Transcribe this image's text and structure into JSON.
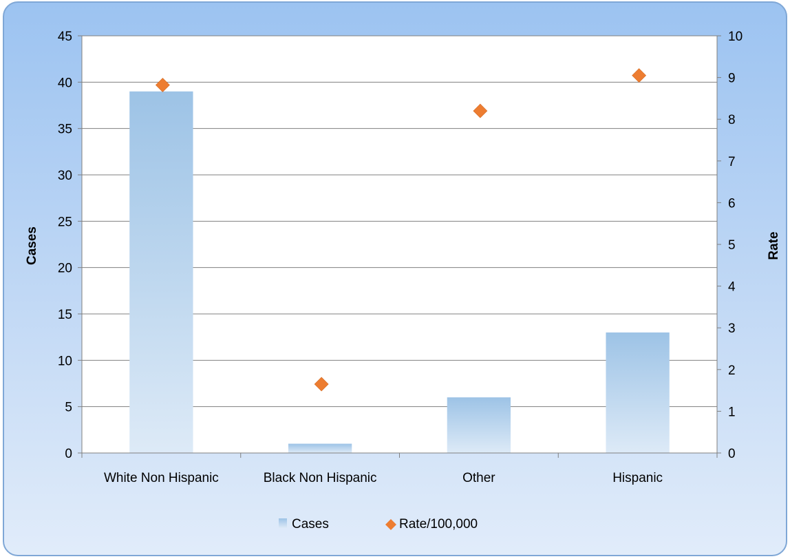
{
  "chart_data": {
    "type": "bar",
    "categories": [
      "White Non Hispanic",
      "Black Non Hispanic",
      "Other",
      "Hispanic"
    ],
    "series": [
      {
        "name": "Cases",
        "type": "bar",
        "axis": "left",
        "values": [
          39,
          1,
          6,
          13
        ]
      },
      {
        "name": "Rate/100,000",
        "type": "scatter",
        "axis": "right",
        "values": [
          8.82,
          1.65,
          8.2,
          9.05
        ]
      }
    ],
    "title": "",
    "ylabel": "Cases",
    "y2label": "Rate",
    "ylim": [
      0,
      45
    ],
    "y2lim": [
      0,
      10
    ],
    "yticks": [
      "0",
      "5",
      "10",
      "15",
      "20",
      "25",
      "30",
      "35",
      "40",
      "45"
    ],
    "y2ticks": [
      "0",
      "1",
      "2",
      "3",
      "4",
      "5",
      "6",
      "7",
      "8",
      "9",
      "10"
    ],
    "grid": true,
    "legend_position": "bottom",
    "colors": {
      "bar": "#9dc3e6",
      "marker": "#ed7d31"
    }
  }
}
